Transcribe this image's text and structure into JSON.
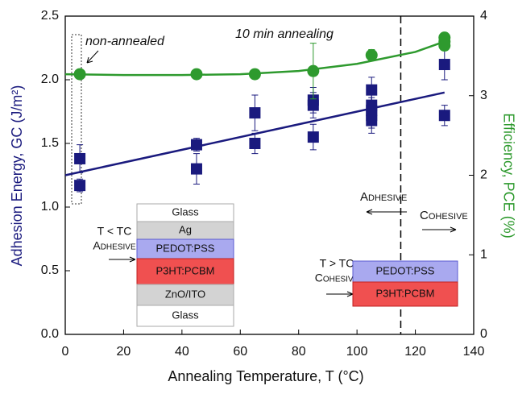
{
  "chart_data": {
    "type": "scatter",
    "x_label": "Annealing Temperature, T (°C)",
    "y_label": "Adhesion Energy, GC (J/m²)",
    "y2_label": "Efficiency, PCE (%)",
    "xlim": [
      0,
      140
    ],
    "xticks": [
      0,
      20,
      40,
      60,
      80,
      100,
      120,
      140
    ],
    "ylim": [
      0,
      2.5
    ],
    "yticks": [
      {
        "value": 0,
        "label": "0.0"
      },
      0.5,
      {
        "value": 1,
        "label": "1.0"
      },
      1.5,
      {
        "value": 2,
        "label": "2.0"
      },
      2.5
    ],
    "y2lim": [
      0,
      4
    ],
    "y2ticks": [
      0,
      1,
      2,
      3,
      4
    ],
    "y_color": "#1a1a7e",
    "y2_color": "#2e9a2e",
    "series": [
      {
        "color": "#1a1a7e",
        "marker": "square",
        "axis": "y",
        "x": [
          5,
          5,
          45,
          45,
          65,
          65,
          85,
          85,
          85,
          105,
          105,
          105,
          105,
          105,
          130,
          130
        ],
        "values": [
          1.38,
          1.17,
          1.49,
          1.3,
          1.74,
          1.5,
          1.84,
          1.8,
          1.55,
          1.92,
          1.8,
          1.76,
          1.72,
          1.68,
          2.12,
          1.72
        ],
        "errors": [
          0.11,
          0.05,
          0.05,
          0.12,
          0.14,
          0.08,
          0.1,
          0.1,
          0.1,
          0.1,
          0.1,
          0.1,
          0.1,
          0.1,
          0.12,
          0.08
        ]
      },
      {
        "color": "#2e9a2e",
        "marker": "circle",
        "axis": "y2",
        "x": [
          5,
          45,
          65,
          85,
          105,
          130,
          130,
          130
        ],
        "values": [
          3.27,
          3.27,
          3.27,
          3.31,
          3.51,
          3.73,
          3.68,
          3.63
        ],
        "errors": [
          0.06,
          0.06,
          0.06,
          0.35,
          0.07,
          0.06,
          0.06,
          0.06
        ]
      }
    ],
    "fits": [
      {
        "color": "#1a1a7e",
        "axis": "y",
        "x": [
          0,
          130
        ],
        "values": [
          1.25,
          1.9
        ]
      },
      {
        "color": "#2e9a2e",
        "axis": "y2",
        "x": [
          0,
          20,
          40,
          60,
          80,
          100,
          120,
          130
        ],
        "values": [
          3.27,
          3.26,
          3.26,
          3.27,
          3.31,
          3.4,
          3.55,
          3.68
        ]
      }
    ],
    "vline": 115,
    "annotations": {
      "non_annealed": "non-annealed",
      "annealing": "10 min annealing",
      "adhesive": "Adhesive",
      "cohesive": "Cohesive",
      "left_condition": "T < TC",
      "left_mode": "Adhesive",
      "right_condition": "T > TC",
      "right_mode": "Cohesive"
    },
    "left_stack": [
      "Glass",
      "Ag",
      "PEDOT:PSS",
      "P3HT:PCBM",
      "ZnO/ITO",
      "Glass"
    ],
    "right_stack": [
      "PEDOT:PSS",
      "P3HT:PCBM"
    ]
  }
}
